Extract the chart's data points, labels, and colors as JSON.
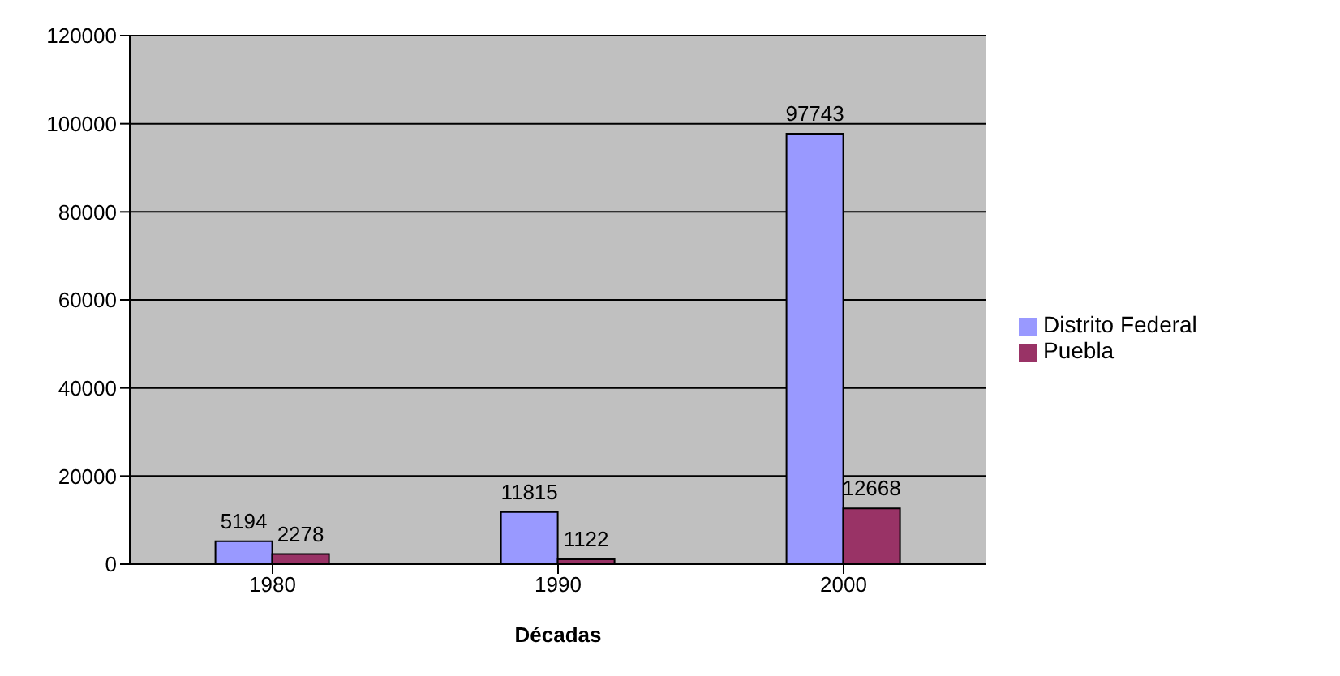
{
  "chart_data": {
    "type": "bar",
    "xlabel": "Décadas",
    "categories": [
      "1980",
      "1990",
      "2000"
    ],
    "series": [
      {
        "name": "Distrito Federal",
        "color": "#9999ff",
        "values": [
          5194,
          11815,
          97743
        ]
      },
      {
        "name": "Puebla",
        "color": "#993366",
        "values": [
          2278,
          1122,
          12668
        ]
      }
    ],
    "ylim": [
      0,
      120000
    ],
    "yticks": [
      0,
      20000,
      40000,
      60000,
      80000,
      100000,
      120000
    ],
    "grid": "y",
    "legend": "right",
    "data_labels": true
  }
}
